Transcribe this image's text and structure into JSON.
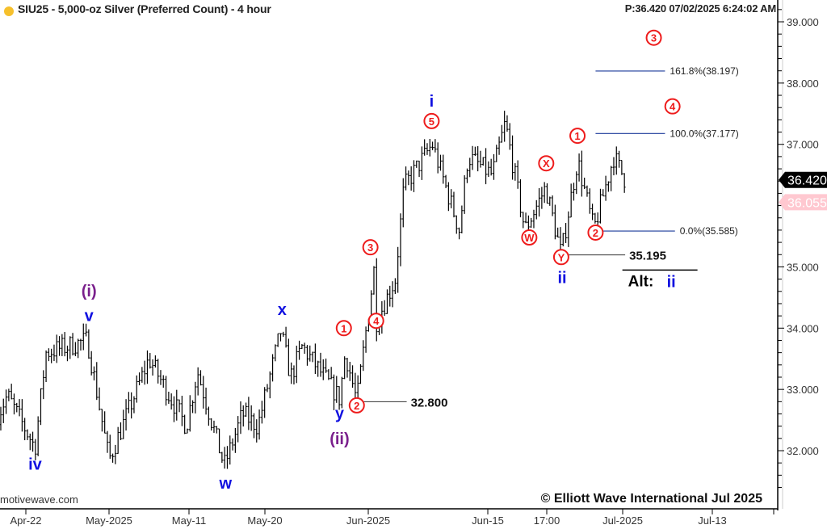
{
  "header": {
    "title": "SIU25 - 5,000-oz Silver (Preferred Count) - 4 hour",
    "price_readout": "P:36.420  07/02/2025 6:24:02 AM",
    "symbol_dot_color": "#f6c02c"
  },
  "footer": {
    "watermark": "motivewave.com",
    "copyright": "© Elliott Wave International Jul 2025"
  },
  "chart_data": {
    "type": "ohlc-bar",
    "ylim": [
      31.3,
      39.35
    ],
    "y_ticks": [
      "39.000",
      "38.000",
      "37.000",
      "35.000",
      "34.000",
      "33.000",
      "32.000"
    ],
    "x_ticks": [
      {
        "label": "Apr-22",
        "date": "2025-04-22"
      },
      {
        "label": "May-2025",
        "date": "2025-05-01"
      },
      {
        "label": "May-11",
        "date": "2025-05-11"
      },
      {
        "label": "May-20",
        "date": "2025-05-20"
      },
      {
        "label": "Jun-2025",
        "date": "2025-06-01"
      },
      {
        "label": "Jun-15",
        "date": "2025-06-15"
      },
      {
        "label": "17:00",
        "date": "2025-06-24"
      },
      {
        "label": "Jul-2025",
        "date": "2025-07-01"
      },
      {
        "label": "Jul-13",
        "date": "2025-07-13"
      },
      {
        "label": "",
        "date": "2025-07-20"
      }
    ],
    "price_swings": [
      [
        "2025-04-19T00:00",
        32.6
      ],
      [
        "2025-04-20T00:00",
        32.9
      ],
      [
        "2025-04-23T00:00",
        32.05
      ],
      [
        "2025-04-24T04:00",
        33.6
      ],
      [
        "2025-04-28T16:00",
        33.8
      ],
      [
        "2025-05-01T00:00",
        31.85
      ],
      [
        "2025-05-06T00:00",
        33.5
      ],
      [
        "2025-05-10T16:00",
        32.4
      ],
      [
        "2025-05-12T00:00",
        33.3
      ],
      [
        "2025-05-15T04:00",
        31.75
      ],
      [
        "2025-05-17T08:00",
        32.6
      ],
      [
        "2025-05-19T04:00",
        32.4
      ],
      [
        "2025-05-21T20:00",
        33.95
      ],
      [
        "2025-05-23T00:00",
        33.2
      ],
      [
        "2025-05-24T08:00",
        33.7
      ],
      [
        "2025-05-28T16:00",
        32.85
      ],
      [
        "2025-05-29T08:00",
        33.6
      ],
      [
        "2025-05-30T16:00",
        32.8
      ],
      [
        "2025-06-01T16:00",
        34.95
      ],
      [
        "2025-06-01T22:00",
        34.1
      ],
      [
        "2025-06-04T04:00",
        34.8
      ],
      [
        "2025-06-05T04:00",
        36.3
      ],
      [
        "2025-06-08T12:00",
        37.0
      ],
      [
        "2025-06-11T16:00",
        35.6
      ],
      [
        "2025-06-12T16:00",
        36.8
      ],
      [
        "2025-06-15T16:00",
        36.5
      ],
      [
        "2025-06-17T16:00",
        37.35
      ],
      [
        "2025-06-20T16:00",
        35.6
      ],
      [
        "2025-06-23T20:00",
        36.3
      ],
      [
        "2025-06-25T08:00",
        35.2
      ],
      [
        "2025-06-26T20:00",
        36.75
      ],
      [
        "2025-06-28T08:00",
        35.6
      ],
      [
        "2025-06-30T04:00",
        36.8
      ],
      [
        "2025-07-01T08:00",
        36.42
      ]
    ],
    "last_price": {
      "label": "36.420",
      "value": 36.42,
      "color": "#000000"
    },
    "reference_price": {
      "label": "36.055",
      "value": 36.055,
      "color": "#f9c0c8"
    },
    "wave_labels": [
      {
        "text": "iv",
        "date": "2025-04-23T00:00",
        "price": 31.78,
        "style": "blue"
      },
      {
        "text": "(i)",
        "date": "2025-04-28T20:00",
        "price": 34.61,
        "style": "purple"
      },
      {
        "text": "v",
        "date": "2025-04-28T20:00",
        "price": 34.21,
        "style": "blue"
      },
      {
        "text": "w",
        "date": "2025-05-15T08:00",
        "price": 31.47,
        "style": "blue"
      },
      {
        "text": "x",
        "date": "2025-05-22T00:00",
        "price": 34.31,
        "style": "blue"
      },
      {
        "text": "y",
        "date": "2025-05-28T16:00",
        "price": 32.61,
        "style": "blue"
      },
      {
        "text": "(ii)",
        "date": "2025-05-28T16:00",
        "price": 32.2,
        "style": "purple"
      },
      {
        "text": "1",
        "date": "2025-05-29T04:00",
        "price": 34.0,
        "style": "circle"
      },
      {
        "text": "2",
        "date": "2025-05-30T16:00",
        "price": 32.74,
        "style": "circle"
      },
      {
        "text": "3",
        "date": "2025-06-01T06:00",
        "price": 35.32,
        "style": "circle"
      },
      {
        "text": "4",
        "date": "2025-06-01T22:00",
        "price": 34.12,
        "style": "circle"
      },
      {
        "text": "5",
        "date": "2025-06-08T10:00",
        "price": 37.38,
        "style": "circle"
      },
      {
        "text": "i",
        "date": "2025-06-08T10:00",
        "price": 37.71,
        "style": "blue"
      },
      {
        "text": "W",
        "date": "2025-06-21T08:00",
        "price": 35.48,
        "style": "circle"
      },
      {
        "text": "X",
        "date": "2025-06-23T22:00",
        "price": 36.69,
        "style": "circle"
      },
      {
        "text": "Y",
        "date": "2025-06-25T08:00",
        "price": 35.16,
        "style": "circle"
      },
      {
        "text": "ii",
        "date": "2025-06-25T10:00",
        "price": 34.83,
        "style": "blue"
      },
      {
        "text": "1",
        "date": "2025-06-26T20:00",
        "price": 37.14,
        "style": "circle"
      },
      {
        "text": "2",
        "date": "2025-06-28T12:00",
        "price": 35.56,
        "style": "circle"
      },
      {
        "text": "3",
        "date": "2025-07-05T04:00",
        "price": 38.74,
        "style": "circle"
      },
      {
        "text": "4",
        "date": "2025-07-07T16:00",
        "price": 37.62,
        "style": "circle"
      }
    ],
    "fib_levels": [
      {
        "label": "161.8%(38.197)",
        "price": 38.197,
        "from": "2025-06-28T12:00",
        "to": "2025-07-06T16:00"
      },
      {
        "label": "100.0%(37.177)",
        "price": 37.177,
        "from": "2025-06-28T12:00",
        "to": "2025-07-06T16:00"
      },
      {
        "label": "0.0%(35.585)",
        "price": 35.585,
        "from": "2025-06-28T12:00",
        "to": "2025-07-08T00:00"
      }
    ],
    "price_levels": [
      {
        "label": "32.800",
        "price": 32.8,
        "from": "2025-05-30T16:00",
        "to": "2025-06-05T12:00"
      },
      {
        "label": "35.195",
        "price": 35.195,
        "from": "2025-06-25T08:00",
        "to": "2025-07-01T08:00"
      }
    ],
    "alt_label": {
      "prefix": "Alt:",
      "wave": "ii",
      "date": "2025-07-01T12:00",
      "price": 34.75
    },
    "colors": {
      "blue": "#1010e0",
      "purple": "#7a1f8c",
      "red": "#ee1c1c",
      "fib": "#1b3a9a",
      "bars": "#000000"
    }
  }
}
